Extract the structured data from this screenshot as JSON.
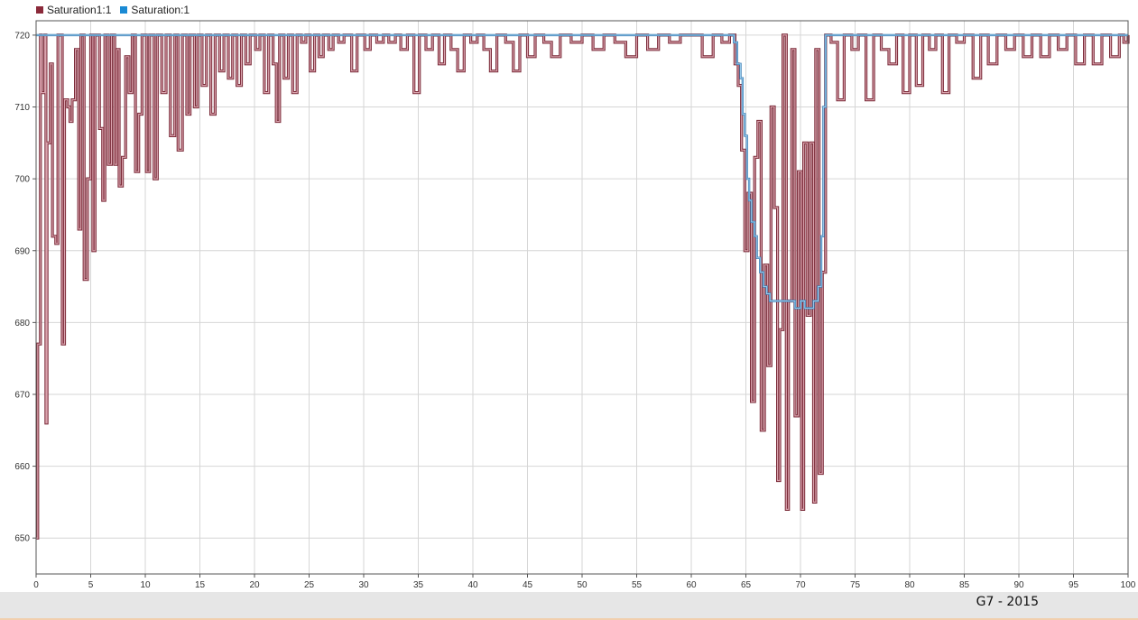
{
  "chart_data": {
    "type": "line",
    "xlim": [
      0,
      100
    ],
    "ylim": [
      645,
      722
    ],
    "x_ticks": [
      0,
      5,
      10,
      15,
      20,
      25,
      30,
      35,
      40,
      45,
      50,
      55,
      60,
      65,
      70,
      75,
      80,
      85,
      90,
      95,
      100
    ],
    "y_ticks": [
      650,
      660,
      670,
      680,
      690,
      700,
      710,
      720
    ],
    "grid": true,
    "legend_position": "top-left",
    "series": [
      {
        "name": "Saturation1:1",
        "color": "#8b2a3a",
        "line_color": "#b96a7a",
        "steps": [
          [
            0,
            650
          ],
          [
            0.15,
            677
          ],
          [
            0.4,
            720
          ],
          [
            0.5,
            712
          ],
          [
            0.8,
            720
          ],
          [
            0.9,
            666
          ],
          [
            1.0,
            705
          ],
          [
            1.3,
            716
          ],
          [
            1.5,
            692
          ],
          [
            1.8,
            691
          ],
          [
            2.0,
            720
          ],
          [
            2.4,
            677
          ],
          [
            2.6,
            711
          ],
          [
            2.9,
            710
          ],
          [
            3.1,
            708
          ],
          [
            3.3,
            711
          ],
          [
            3.6,
            718
          ],
          [
            3.9,
            693
          ],
          [
            4.1,
            720
          ],
          [
            4.4,
            686
          ],
          [
            4.7,
            700
          ],
          [
            5.0,
            720
          ],
          [
            5.2,
            690
          ],
          [
            5.4,
            720
          ],
          [
            5.8,
            707
          ],
          [
            6.1,
            697
          ],
          [
            6.3,
            720
          ],
          [
            6.6,
            702
          ],
          [
            6.9,
            720
          ],
          [
            7.2,
            702
          ],
          [
            7.4,
            718
          ],
          [
            7.6,
            699
          ],
          [
            7.9,
            703
          ],
          [
            8.2,
            717
          ],
          [
            8.5,
            712
          ],
          [
            8.8,
            720
          ],
          [
            9.1,
            701
          ],
          [
            9.4,
            709
          ],
          [
            9.7,
            720
          ],
          [
            10.1,
            701
          ],
          [
            10.4,
            720
          ],
          [
            10.8,
            700
          ],
          [
            11.1,
            720
          ],
          [
            11.5,
            712
          ],
          [
            11.9,
            720
          ],
          [
            12.3,
            706
          ],
          [
            12.7,
            720
          ],
          [
            13.0,
            704
          ],
          [
            13.4,
            720
          ],
          [
            13.8,
            709
          ],
          [
            14.1,
            720
          ],
          [
            14.5,
            710
          ],
          [
            14.8,
            720
          ],
          [
            15.2,
            713
          ],
          [
            15.6,
            720
          ],
          [
            16.0,
            709
          ],
          [
            16.4,
            720
          ],
          [
            16.8,
            715
          ],
          [
            17.2,
            720
          ],
          [
            17.6,
            714
          ],
          [
            18.0,
            720
          ],
          [
            18.4,
            713
          ],
          [
            18.8,
            720
          ],
          [
            19.2,
            716
          ],
          [
            19.6,
            720
          ],
          [
            20.1,
            718
          ],
          [
            20.5,
            720
          ],
          [
            20.9,
            712
          ],
          [
            21.3,
            720
          ],
          [
            21.7,
            716
          ],
          [
            22.0,
            708
          ],
          [
            22.3,
            720
          ],
          [
            22.7,
            714
          ],
          [
            23.1,
            720
          ],
          [
            23.5,
            712
          ],
          [
            23.9,
            720
          ],
          [
            24.3,
            719
          ],
          [
            24.7,
            720
          ],
          [
            25.1,
            715
          ],
          [
            25.5,
            720
          ],
          [
            25.9,
            717
          ],
          [
            26.3,
            720
          ],
          [
            26.8,
            718
          ],
          [
            27.2,
            720
          ],
          [
            27.7,
            719
          ],
          [
            28.2,
            720
          ],
          [
            28.9,
            715
          ],
          [
            29.4,
            720
          ],
          [
            30.1,
            718
          ],
          [
            30.6,
            720
          ],
          [
            31.2,
            719
          ],
          [
            31.8,
            720
          ],
          [
            32.3,
            719
          ],
          [
            32.9,
            720
          ],
          [
            33.4,
            718
          ],
          [
            34.0,
            720
          ],
          [
            34.6,
            712
          ],
          [
            35.1,
            720
          ],
          [
            35.7,
            718
          ],
          [
            36.3,
            720
          ],
          [
            36.9,
            716
          ],
          [
            37.4,
            720
          ],
          [
            38.0,
            718
          ],
          [
            38.6,
            715
          ],
          [
            39.2,
            720
          ],
          [
            39.8,
            719
          ],
          [
            40.4,
            720
          ],
          [
            41.0,
            718
          ],
          [
            41.6,
            715
          ],
          [
            42.2,
            720
          ],
          [
            43.0,
            719
          ],
          [
            43.7,
            715
          ],
          [
            44.3,
            720
          ],
          [
            45.0,
            717
          ],
          [
            45.7,
            720
          ],
          [
            46.5,
            719
          ],
          [
            47.2,
            717
          ],
          [
            48.0,
            720
          ],
          [
            49.0,
            719
          ],
          [
            50.0,
            720
          ],
          [
            51.0,
            718
          ],
          [
            52.0,
            720
          ],
          [
            53.0,
            719
          ],
          [
            54.0,
            717
          ],
          [
            55.0,
            720
          ],
          [
            56.0,
            718
          ],
          [
            57.0,
            720
          ],
          [
            58.0,
            719
          ],
          [
            59.0,
            720
          ],
          [
            61.0,
            717
          ],
          [
            62.0,
            720
          ],
          [
            62.8,
            719
          ],
          [
            63.5,
            720
          ],
          [
            64.0,
            716
          ],
          [
            64.3,
            713
          ],
          [
            64.6,
            704
          ],
          [
            64.9,
            690
          ],
          [
            65.2,
            698
          ],
          [
            65.5,
            669
          ],
          [
            65.8,
            703
          ],
          [
            66.1,
            708
          ],
          [
            66.4,
            665
          ],
          [
            66.7,
            688
          ],
          [
            67.0,
            674
          ],
          [
            67.3,
            710
          ],
          [
            67.6,
            696
          ],
          [
            67.9,
            658
          ],
          [
            68.1,
            679
          ],
          [
            68.4,
            720
          ],
          [
            68.7,
            654
          ],
          [
            68.9,
            683
          ],
          [
            69.2,
            718
          ],
          [
            69.5,
            667
          ],
          [
            69.8,
            701
          ],
          [
            70.1,
            654
          ],
          [
            70.3,
            705
          ],
          [
            70.6,
            681
          ],
          [
            70.9,
            705
          ],
          [
            71.2,
            655
          ],
          [
            71.4,
            718
          ],
          [
            71.7,
            659
          ],
          [
            72.0,
            687
          ],
          [
            72.3,
            720
          ],
          [
            72.8,
            719
          ],
          [
            73.4,
            711
          ],
          [
            74.0,
            720
          ],
          [
            74.7,
            718
          ],
          [
            75.3,
            720
          ],
          [
            76.0,
            711
          ],
          [
            76.7,
            720
          ],
          [
            77.4,
            718
          ],
          [
            78.1,
            716
          ],
          [
            78.8,
            720
          ],
          [
            79.4,
            712
          ],
          [
            80.0,
            720
          ],
          [
            80.6,
            713
          ],
          [
            81.2,
            720
          ],
          [
            81.8,
            718
          ],
          [
            82.4,
            720
          ],
          [
            83.0,
            712
          ],
          [
            83.6,
            720
          ],
          [
            84.3,
            719
          ],
          [
            85.0,
            720
          ],
          [
            85.8,
            714
          ],
          [
            86.5,
            720
          ],
          [
            87.2,
            716
          ],
          [
            88.0,
            720
          ],
          [
            88.8,
            718
          ],
          [
            89.6,
            720
          ],
          [
            90.4,
            717
          ],
          [
            91.2,
            720
          ],
          [
            92.0,
            717
          ],
          [
            92.8,
            720
          ],
          [
            93.6,
            718
          ],
          [
            94.4,
            720
          ],
          [
            95.2,
            716
          ],
          [
            96.0,
            720
          ],
          [
            96.8,
            716
          ],
          [
            97.6,
            720
          ],
          [
            98.4,
            717
          ],
          [
            99.2,
            720
          ],
          [
            99.6,
            719
          ],
          [
            100,
            720
          ]
        ]
      },
      {
        "name": "Saturation:1",
        "color": "#1a8ad4",
        "line_color": "#6aaed9",
        "steps": [
          [
            0,
            720
          ],
          [
            63.9,
            719
          ],
          [
            64.2,
            716
          ],
          [
            64.5,
            714
          ],
          [
            64.7,
            709
          ],
          [
            64.9,
            706
          ],
          [
            65.1,
            700
          ],
          [
            65.3,
            697
          ],
          [
            65.5,
            694
          ],
          [
            65.8,
            692
          ],
          [
            66.0,
            689
          ],
          [
            66.3,
            687
          ],
          [
            66.6,
            685
          ],
          [
            66.9,
            684
          ],
          [
            67.2,
            683
          ],
          [
            69.5,
            682
          ],
          [
            70.0,
            683
          ],
          [
            70.4,
            682
          ],
          [
            70.8,
            682
          ],
          [
            71.2,
            683
          ],
          [
            71.6,
            685
          ],
          [
            71.9,
            692
          ],
          [
            72.1,
            710
          ],
          [
            72.3,
            720
          ],
          [
            100,
            720
          ]
        ]
      }
    ]
  },
  "footer": {
    "label": "G7 - 2015"
  }
}
